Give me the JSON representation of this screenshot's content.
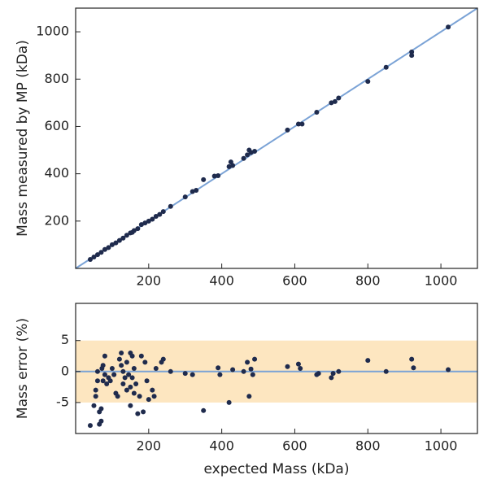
{
  "chart_data": [
    {
      "type": "scatter",
      "y_label": "Mass measured by MP (kDa)",
      "x": [
        40,
        50,
        60,
        70,
        80,
        90,
        100,
        110,
        120,
        130,
        140,
        150,
        155,
        160,
        170,
        180,
        190,
        200,
        210,
        220,
        230,
        240,
        260,
        300,
        320,
        330,
        350,
        380,
        390,
        420,
        425,
        430,
        460,
        470,
        475,
        480,
        490,
        580,
        610,
        620,
        660,
        700,
        710,
        720,
        800,
        850,
        920,
        920,
        1020
      ],
      "values": [
        38,
        48,
        58,
        68,
        80,
        88,
        100,
        108,
        118,
        128,
        140,
        150,
        152,
        160,
        168,
        185,
        192,
        200,
        208,
        220,
        228,
        240,
        262,
        302,
        325,
        330,
        375,
        390,
        392,
        430,
        450,
        435,
        465,
        480,
        500,
        490,
        495,
        585,
        610,
        610,
        660,
        700,
        705,
        720,
        790,
        850,
        900,
        915,
        1020
      ],
      "color": "#1f2b4d",
      "identity_line": true,
      "line_color": "#7ba3d6",
      "xlim": [
        0,
        1100
      ],
      "ylim": [
        0,
        1100
      ],
      "xticks": [
        200,
        400,
        600,
        800,
        1000
      ],
      "yticks": [
        200,
        400,
        600,
        800,
        1000
      ]
    },
    {
      "type": "scatter",
      "y_label": "Mass error (%)",
      "x_label": "expected Mass (kDa)",
      "x": [
        40,
        50,
        55,
        55,
        60,
        60,
        65,
        65,
        70,
        70,
        72,
        75,
        75,
        80,
        80,
        85,
        90,
        95,
        100,
        105,
        110,
        115,
        120,
        125,
        125,
        130,
        130,
        135,
        140,
        140,
        145,
        150,
        150,
        150,
        155,
        155,
        160,
        160,
        165,
        170,
        175,
        180,
        185,
        190,
        195,
        200,
        210,
        215,
        220,
        235,
        240,
        260,
        300,
        320,
        350,
        390,
        395,
        420,
        430,
        460,
        470,
        475,
        480,
        485,
        490,
        580,
        610,
        615,
        660,
        665,
        700,
        705,
        720,
        800,
        850,
        920,
        925,
        1020
      ],
      "values": [
        -8.7,
        -5.5,
        -4,
        -3,
        -1.5,
        0,
        -6.5,
        -8.5,
        -8,
        -6,
        0.5,
        1,
        -1.5,
        2.5,
        -0.5,
        -2,
        -1,
        -1.5,
        0.5,
        -0.5,
        -3.5,
        -4,
        2,
        3,
        1,
        0,
        -2,
        -1,
        1.5,
        -3,
        -0.5,
        -2.5,
        -5.5,
        3,
        2.5,
        -1,
        -3.5,
        0.5,
        -2,
        -6.8,
        -4,
        2.5,
        -6.5,
        1.5,
        -1.5,
        -4.5,
        -3,
        -4,
        0.5,
        1.5,
        2,
        0,
        -0.3,
        -0.5,
        -6.3,
        0.6,
        -0.5,
        -5,
        0.3,
        0,
        1.5,
        -4,
        0.4,
        -0.5,
        2,
        0.8,
        1.2,
        0.5,
        -0.5,
        -0.3,
        -1,
        -0.3,
        0,
        1.8,
        0,
        2,
        0.6,
        0.3
      ],
      "color": "#1f2b4d",
      "band": [
        -5,
        5
      ],
      "band_color": "#fde6c0",
      "reference_y": 0,
      "line_color": "#7ba3d6",
      "xlim": [
        0,
        1100
      ],
      "ylim": [
        -10,
        11
      ],
      "xticks": [
        200,
        400,
        600,
        800,
        1000
      ],
      "yticks": [
        -5,
        0,
        5
      ]
    }
  ]
}
